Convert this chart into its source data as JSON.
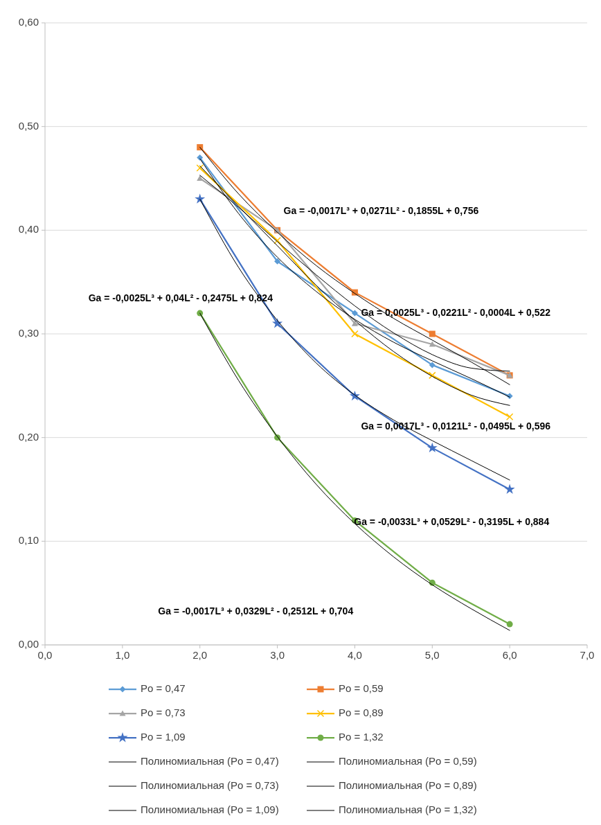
{
  "chart_data": {
    "type": "line",
    "x": [
      2,
      3,
      4,
      5,
      6
    ],
    "xlim": [
      0,
      7
    ],
    "xticks": [
      {
        "value": 0,
        "label": "0,0"
      },
      {
        "value": 1,
        "label": "1,0"
      },
      {
        "value": 2,
        "label": "2,0"
      },
      {
        "value": 3,
        "label": "3,0"
      },
      {
        "value": 4,
        "label": "4,0"
      },
      {
        "value": 5,
        "label": "5,0"
      },
      {
        "value": 6,
        "label": "6,0"
      },
      {
        "value": 7,
        "label": "7,0"
      }
    ],
    "ylim": [
      0,
      0.6
    ],
    "yticks": [
      {
        "value": 0,
        "label": "0,00"
      },
      {
        "value": 0.1,
        "label": "0,10"
      },
      {
        "value": 0.2,
        "label": "0,20"
      },
      {
        "value": 0.3,
        "label": "0,30"
      },
      {
        "value": 0.4,
        "label": "0,40"
      },
      {
        "value": 0.5,
        "label": "0,50"
      },
      {
        "value": 0.6,
        "label": "0,60"
      }
    ],
    "grid": "y",
    "legend": "bottom",
    "line_style": "solid",
    "series": [
      {
        "name": "Po = 0,47",
        "color": "#5b9bd5",
        "marker": "diamond",
        "values": [
          0.47,
          0.37,
          0.32,
          0.27,
          0.24
        ]
      },
      {
        "name": "Po = 0,59",
        "color": "#ed7d31",
        "marker": "square",
        "values": [
          0.48,
          0.4,
          0.34,
          0.3,
          0.26
        ]
      },
      {
        "name": "Po = 0,73",
        "color": "#a5a5a5",
        "marker": "triangle",
        "values": [
          0.45,
          0.4,
          0.31,
          0.29,
          0.26
        ]
      },
      {
        "name": "Po = 0,89",
        "color": "#ffc000",
        "marker": "cross",
        "values": [
          0.46,
          0.39,
          0.3,
          0.26,
          0.22
        ]
      },
      {
        "name": "Po = 1,09",
        "color": "#4472c4",
        "marker": "star",
        "values": [
          0.43,
          0.31,
          0.24,
          0.19,
          0.15
        ]
      },
      {
        "name": "Po = 1,32",
        "color": "#70ad47",
        "marker": "circle",
        "values": [
          0.32,
          0.2,
          0.12,
          0.06,
          0.02
        ]
      },
      {
        "name": "Полиномиальная (Po = 0,47)",
        "color": "#000000",
        "marker": "none",
        "x": [
          2,
          2.5,
          3,
          3.5,
          4,
          4.5,
          5,
          5.5,
          6
        ],
        "values": [
          0.469,
          0.416,
          0.374,
          0.341,
          0.314,
          0.292,
          0.274,
          0.257,
          0.239
        ]
      },
      {
        "name": "Полиномиальная (Po = 0,59)",
        "color": "#000000",
        "marker": "none",
        "x": [
          2,
          2.5,
          3,
          3.5,
          4,
          4.5,
          5,
          5.5,
          6
        ],
        "values": [
          0.48,
          0.435,
          0.398,
          0.366,
          0.339,
          0.315,
          0.294,
          0.273,
          0.251
        ]
      },
      {
        "name": "Полиномиальная (Po = 0,73)",
        "color": "#000000",
        "marker": "none",
        "x": [
          2,
          2.5,
          3,
          3.5,
          4,
          4.5,
          5,
          5.5,
          6
        ],
        "values": [
          0.453,
          0.422,
          0.389,
          0.357,
          0.327,
          0.301,
          0.28,
          0.267,
          0.264
        ]
      },
      {
        "name": "Полиномиальная (Po = 0,89)",
        "color": "#000000",
        "marker": "none",
        "x": [
          2,
          2.5,
          3,
          3.5,
          4,
          4.5,
          5,
          5.5,
          6
        ],
        "values": [
          0.462,
          0.423,
          0.385,
          0.347,
          0.313,
          0.283,
          0.259,
          0.241,
          0.231
        ]
      },
      {
        "name": "Полиномиальная (Po = 1,09)",
        "color": "#000000",
        "marker": "none",
        "x": [
          2,
          2.5,
          3,
          3.5,
          4,
          4.5,
          5,
          5.5,
          6
        ],
        "values": [
          0.43,
          0.364,
          0.313,
          0.272,
          0.241,
          0.217,
          0.197,
          0.178,
          0.159
        ]
      },
      {
        "name": "Полиномиальная (Po = 1,32)",
        "color": "#000000",
        "marker": "none",
        "x": [
          2,
          2.5,
          3,
          3.5,
          4,
          4.5,
          5,
          5.5,
          6
        ],
        "values": [
          0.32,
          0.255,
          0.201,
          0.155,
          0.117,
          0.085,
          0.058,
          0.035,
          0.014
        ]
      }
    ],
    "annotations": [
      "Ga = -0,0017L³ + 0,0271L² - 0,1855L + 0,756",
      "Ga = -0,0025L³ + 0,04L² - 0,2475L + 0,824",
      "Ga = 0,0025L³ - 0,0221L² - 0,0004L + 0,522",
      "Ga = 0,0017L³ - 0,0121L² - 0,0495L + 0,596",
      "Ga = -0,0033L³ + 0,0529L² - 0,3195L + 0,884",
      "Ga = -0,0017L³ + 0,0329L² - 0,2512L + 0,704"
    ]
  }
}
